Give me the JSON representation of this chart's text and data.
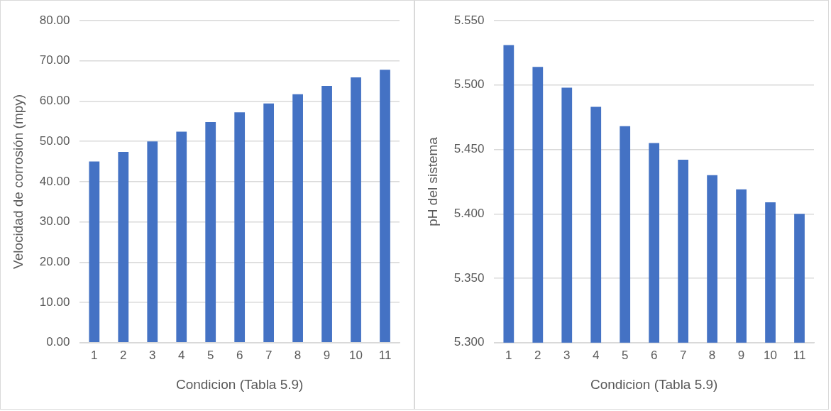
{
  "chart_data": [
    {
      "type": "bar",
      "xlabel": "Condicion (Tabla 5.9)",
      "ylabel": "Velocidad de corrosión (mpy)",
      "categories": [
        "1",
        "2",
        "3",
        "4",
        "5",
        "6",
        "7",
        "8",
        "9",
        "10",
        "11"
      ],
      "values": [
        45.0,
        47.4,
        50.0,
        52.4,
        54.8,
        57.2,
        59.4,
        61.7,
        63.8,
        65.9,
        67.8
      ],
      "color": "#4472c4",
      "ylim": [
        0,
        80
      ],
      "yticks": [
        {
          "value": 0,
          "label": "0.00"
        },
        {
          "value": 10,
          "label": "10.00"
        },
        {
          "value": 20,
          "label": "20.00"
        },
        {
          "value": 30,
          "label": "30.00"
        },
        {
          "value": 40,
          "label": "40.00"
        },
        {
          "value": 50,
          "label": "50.00"
        },
        {
          "value": 60,
          "label": "60.00"
        },
        {
          "value": 70,
          "label": "70.00"
        },
        {
          "value": 80,
          "label": "80.00"
        }
      ],
      "grid": "y"
    },
    {
      "type": "bar",
      "xlabel": "Condicion (Tabla 5.9)",
      "ylabel": "pH del sistema",
      "categories": [
        "1",
        "2",
        "3",
        "4",
        "5",
        "6",
        "7",
        "8",
        "9",
        "10",
        "11"
      ],
      "values": [
        5.531,
        5.514,
        5.498,
        5.483,
        5.468,
        5.455,
        5.442,
        5.43,
        5.419,
        5.409,
        5.4
      ],
      "color": "#4472c4",
      "ylim": [
        5.3,
        5.55
      ],
      "yticks": [
        {
          "value": 5.3,
          "label": "5.300"
        },
        {
          "value": 5.35,
          "label": "5.350"
        },
        {
          "value": 5.4,
          "label": "5.400"
        },
        {
          "value": 5.45,
          "label": "5.450"
        },
        {
          "value": 5.5,
          "label": "5.500"
        },
        {
          "value": 5.55,
          "label": "5.550"
        }
      ],
      "grid": "y"
    }
  ]
}
